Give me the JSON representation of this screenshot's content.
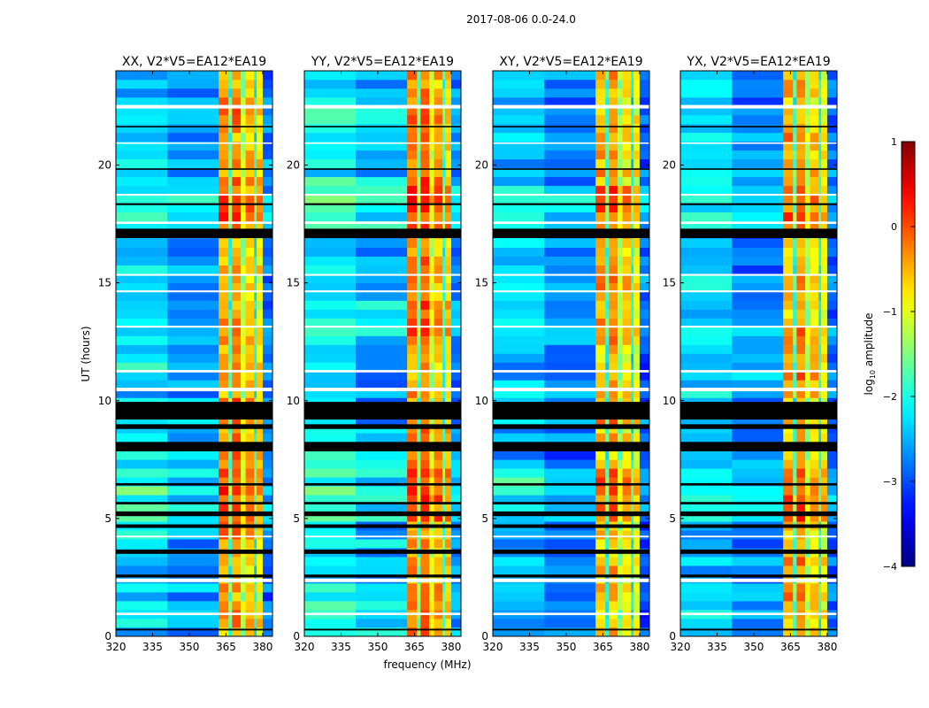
{
  "chart_data": {
    "type": "heatmap",
    "title": "2017-08-06 0.0-24.0",
    "xlabel": "frequency (MHz)",
    "ylabel": "UT (hours)",
    "xlim": [
      320,
      384
    ],
    "ylim": [
      0,
      24
    ],
    "xticks": [
      "320",
      "335",
      "350",
      "365",
      "380"
    ],
    "xtick_values": [
      320,
      335,
      350,
      365,
      380
    ],
    "yticks": [
      "0",
      "5",
      "10",
      "15",
      "20"
    ],
    "ytick_values": [
      0,
      5,
      10,
      15,
      20
    ],
    "panels": [
      {
        "title": "XX, V2*V5=EA12*EA19",
        "offset": 0.0
      },
      {
        "title": "YY, V2*V5=EA12*EA19",
        "offset": 0.15
      },
      {
        "title": "XY, V2*V5=EA12*EA19",
        "offset": -0.1
      },
      {
        "title": "YX, V2*V5=EA12*EA19",
        "offset": -0.05
      }
    ],
    "frequency_bands": [
      {
        "range": [
          320,
          341
        ],
        "log10_amplitude": -2.3
      },
      {
        "range": [
          341,
          362
        ],
        "log10_amplitude": -2.6
      },
      {
        "range": [
          362,
          366
        ],
        "log10_amplitude": -0.4
      },
      {
        "range": [
          366,
          367.5
        ],
        "log10_amplitude": -1.8
      },
      {
        "range": [
          367.5,
          371
        ],
        "log10_amplitude": -0.3
      },
      {
        "range": [
          371,
          373
        ],
        "log10_amplitude": -1.2
      },
      {
        "range": [
          373,
          376.5
        ],
        "log10_amplitude": -0.6
      },
      {
        "range": [
          376.5,
          377.5
        ],
        "log10_amplitude": -2.0
      },
      {
        "range": [
          377.5,
          380
        ],
        "log10_amplitude": -0.8
      },
      {
        "range": [
          380,
          384
        ],
        "log10_amplitude": -2.8
      }
    ],
    "flagged_black_hours": [
      [
        0.25,
        0.32
      ],
      [
        2.5,
        2.62
      ],
      [
        3.5,
        3.68
      ],
      [
        4.6,
        4.75
      ],
      [
        5.1,
        5.3
      ],
      [
        5.6,
        5.7
      ],
      [
        6.4,
        6.5
      ],
      [
        7.85,
        8.25
      ],
      [
        8.8,
        9.0
      ],
      [
        9.2,
        9.95
      ],
      [
        16.9,
        17.3
      ],
      [
        18.3,
        18.38
      ],
      [
        19.8,
        19.86
      ],
      [
        21.6,
        21.66
      ]
    ],
    "gap_white_hours": [
      [
        0.9,
        1.0
      ],
      [
        2.3,
        2.45
      ],
      [
        4.2,
        4.27
      ],
      [
        10.4,
        10.55
      ],
      [
        11.2,
        11.3
      ],
      [
        13.1,
        13.18
      ],
      [
        14.6,
        14.68
      ],
      [
        15.3,
        15.38
      ],
      [
        17.5,
        17.6
      ],
      [
        18.7,
        18.78
      ],
      [
        20.9,
        20.96
      ],
      [
        22.4,
        22.55
      ]
    ],
    "colorbar": {
      "label": "log10 amplitude",
      "label_main": "log",
      "label_sub": "10",
      "label_rest": " amplitude",
      "range": [
        -4,
        1
      ],
      "ticks": [
        "1",
        "0",
        "−1",
        "−2",
        "−3",
        "−4"
      ],
      "tick_values": [
        1,
        0,
        -1,
        -2,
        -3,
        -4
      ],
      "colormap": "jet"
    }
  }
}
